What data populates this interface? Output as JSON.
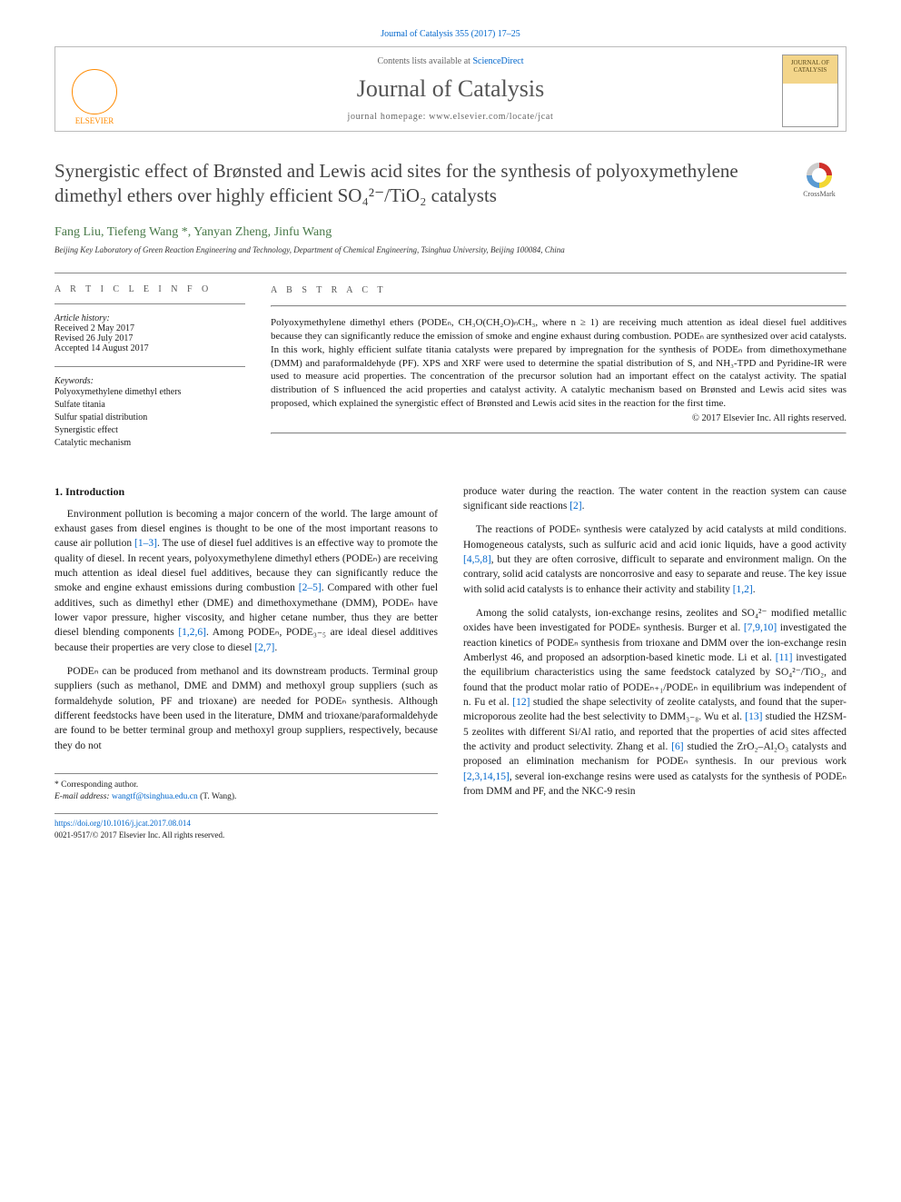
{
  "top": {
    "citation": "Journal of Catalysis 355 (2017) 17–25",
    "contents_prefix": "Contents lists available at ",
    "contents_link": "ScienceDirect",
    "journal_name": "Journal of Catalysis",
    "homepage_prefix": "journal homepage: ",
    "homepage_url": "www.elsevier.com/locate/jcat",
    "elsevier_label": "ELSEVIER",
    "cover_line1": "JOURNAL OF",
    "cover_line2": "CATALYSIS"
  },
  "title": "Synergistic effect of Brønsted and Lewis acid sites for the synthesis of polyoxymethylene dimethyl ethers over highly efficient SO₄²⁻/TiO₂ catalysts",
  "crossmark_label": "CrossMark",
  "authors": "Fang Liu, Tiefeng Wang *, Yanyan Zheng, Jinfu Wang",
  "affiliation": "Beijing Key Laboratory of Green Reaction Engineering and Technology, Department of Chemical Engineering, Tsinghua University, Beijing 100084, China",
  "article_info": {
    "label": "A R T I C L E   I N F O",
    "history_heading": "Article history:",
    "received": "Received 2 May 2017",
    "revised": "Revised 26 July 2017",
    "accepted": "Accepted 14 August 2017",
    "keywords_heading": "Keywords:",
    "keywords": [
      "Polyoxymethylene dimethyl ethers",
      "Sulfate titania",
      "Sulfur spatial distribution",
      "Synergistic effect",
      "Catalytic mechanism"
    ]
  },
  "abstract": {
    "label": "A B S T R A C T",
    "text": "Polyoxymethylene dimethyl ethers (PODEₙ, CH₃O(CH₂O)ₙCH₃, where n ≥ 1) are receiving much attention as ideal diesel fuel additives because they can significantly reduce the emission of smoke and engine exhaust during combustion. PODEₙ are synthesized over acid catalysts. In this work, highly efficient sulfate titania catalysts were prepared by impregnation for the synthesis of PODEₙ from dimethoxymethane (DMM) and paraformaldehyde (PF). XPS and XRF were used to determine the spatial distribution of S, and NH₃-TPD and Pyridine-IR were used to measure acid properties. The concentration of the precursor solution had an important effect on the catalyst activity. The spatial distribution of S influenced the acid properties and catalyst activity. A catalytic mechanism based on Brønsted and Lewis acid sites was proposed, which explained the synergistic effect of Brønsted and Lewis acid sites in the reaction for the first time.",
    "copyright": "© 2017 Elsevier Inc. All rights reserved."
  },
  "intro": {
    "heading": "1. Introduction",
    "p1": "Environment pollution is becoming a major concern of the world. The large amount of exhaust gases from diesel engines is thought to be one of the most important reasons to cause air pollution [1–3]. The use of diesel fuel additives is an effective way to promote the quality of diesel. In recent years, polyoxymethylene dimethyl ethers (PODEₙ) are receiving much attention as ideal diesel fuel additives, because they can significantly reduce the smoke and engine exhaust emissions during combustion [2–5]. Compared with other fuel additives, such as dimethyl ether (DME) and dimethoxymethane (DMM), PODEₙ have lower vapor pressure, higher viscosity, and higher cetane number, thus they are better diesel blending components [1,2,6]. Among PODEₙ, PODE₃₋₅ are ideal diesel additives because their properties are very close to diesel [2,7].",
    "p2": "PODEₙ can be produced from methanol and its downstream products. Terminal group suppliers (such as methanol, DME and DMM) and methoxyl group suppliers (such as formaldehyde solution, PF and trioxane) are needed for PODEₙ synthesis. Although different feedstocks have been used in the literature, DMM and trioxane/paraformaldehyde are found to be better terminal group and methoxyl group suppliers, respectively, because they do not",
    "p3": "produce water during the reaction. The water content in the reaction system can cause significant side reactions [2].",
    "p4": "The reactions of PODEₙ synthesis were catalyzed by acid catalysts at mild conditions. Homogeneous catalysts, such as sulfuric acid and acid ionic liquids, have a good activity [4,5,8], but they are often corrosive, difficult to separate and environment malign. On the contrary, solid acid catalysts are noncorrosive and easy to separate and reuse. The key issue with solid acid catalysts is to enhance their activity and stability [1,2].",
    "p5": "Among the solid catalysts, ion-exchange resins, zeolites and SO₄²⁻ modified metallic oxides have been investigated for PODEₙ synthesis. Burger et al. [7,9,10] investigated the reaction kinetics of PODEₙ synthesis from trioxane and DMM over the ion-exchange resin Amberlyst 46, and proposed an adsorption-based kinetic mode. Li et al. [11] investigated the equilibrium characteristics using the same feedstock catalyzed by SO₄²⁻/TiO₂, and found that the product molar ratio of PODEₙ₊₁/PODEₙ in equilibrium was independent of n. Fu et al. [12] studied the shape selectivity of zeolite catalysts, and found that the super-microporous zeolite had the best selectivity to DMM₃₋₈. Wu et al. [13] studied the HZSM-5 zeolites with different Si/Al ratio, and reported that the properties of acid sites affected the activity and product selectivity. Zhang et al. [6] studied the ZrO₂–Al₂O₃ catalysts and proposed an elimination mechanism for PODEₙ synthesis. In our previous work [2,3,14,15], several ion-exchange resins were used as catalysts for the synthesis of PODEₙ from DMM and PF, and the NKC-9 resin"
  },
  "footer": {
    "corr_label": "* Corresponding author.",
    "email_label": "E-mail address: ",
    "email": "wangtf@tsinghua.edu.cn",
    "email_who": " (T. Wang).",
    "doi": "https://doi.org/10.1016/j.jcat.2017.08.014",
    "issn_line": "0021-9517/© 2017 Elsevier Inc. All rights reserved."
  },
  "colors": {
    "link": "#0066cc",
    "author": "#4a7a4a",
    "elsevier": "#ff8a00"
  }
}
